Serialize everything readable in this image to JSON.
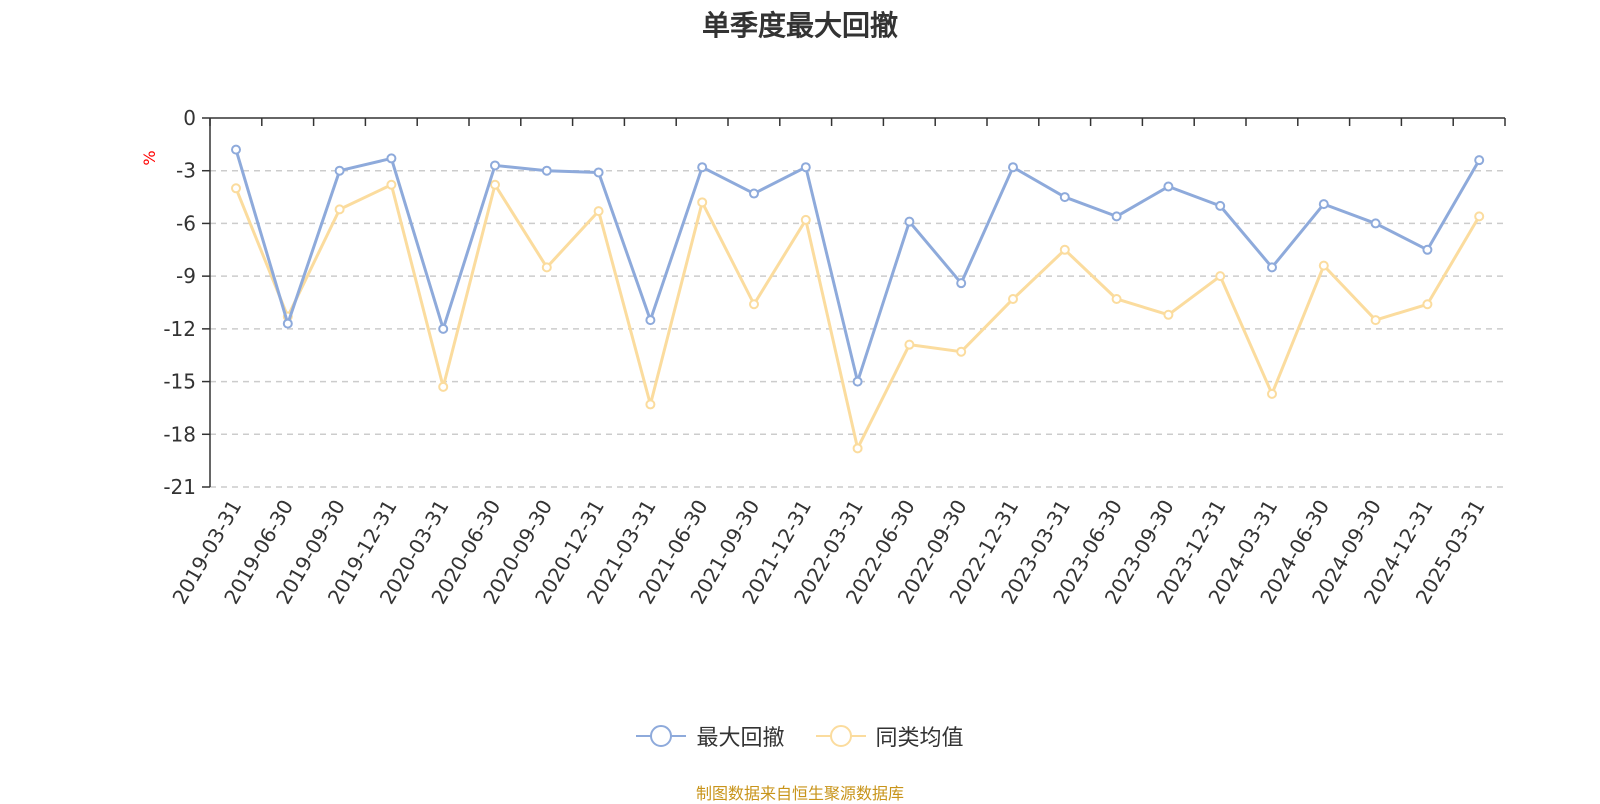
{
  "chart_data": {
    "type": "line",
    "title": "单季度最大回撤",
    "ylabel": "%",
    "ylim": [
      -21,
      0
    ],
    "yticks": [
      0,
      -3,
      -6,
      -9,
      -12,
      -15,
      -18,
      -21
    ],
    "grid": true,
    "legend_position": "bottom",
    "categories": [
      "2019-03-31",
      "2019-06-30",
      "2019-09-30",
      "2019-12-31",
      "2020-03-31",
      "2020-06-30",
      "2020-09-30",
      "2020-12-31",
      "2021-03-31",
      "2021-06-30",
      "2021-09-30",
      "2021-12-31",
      "2022-03-31",
      "2022-06-30",
      "2022-09-30",
      "2022-12-31",
      "2023-03-31",
      "2023-06-30",
      "2023-09-30",
      "2023-12-31",
      "2024-03-31",
      "2024-06-30",
      "2024-09-30",
      "2024-12-31",
      "2025-03-31"
    ],
    "series": [
      {
        "name": "最大回撤",
        "color": "#8eaadb",
        "values": [
          -1.8,
          -11.7,
          -3.0,
          -2.3,
          -12.0,
          -2.7,
          -3.0,
          -3.1,
          -11.5,
          -2.8,
          -4.3,
          -2.8,
          -15.0,
          -5.9,
          -9.4,
          -2.8,
          -4.5,
          -5.6,
          -3.9,
          -5.0,
          -8.5,
          -4.9,
          -6.0,
          -7.5,
          -2.4
        ]
      },
      {
        "name": "同类均值",
        "color": "#fbdc9e",
        "values": [
          -4.0,
          -11.3,
          -5.2,
          -3.8,
          -15.3,
          -3.8,
          -8.5,
          -5.3,
          -16.3,
          -4.8,
          -10.6,
          -5.8,
          -18.8,
          -12.9,
          -13.3,
          -10.3,
          -7.5,
          -10.3,
          -11.2,
          -9.0,
          -15.7,
          -8.4,
          -11.5,
          -10.6,
          -5.6
        ]
      }
    ]
  },
  "source_note": "制图数据来自恒生聚源数据库"
}
